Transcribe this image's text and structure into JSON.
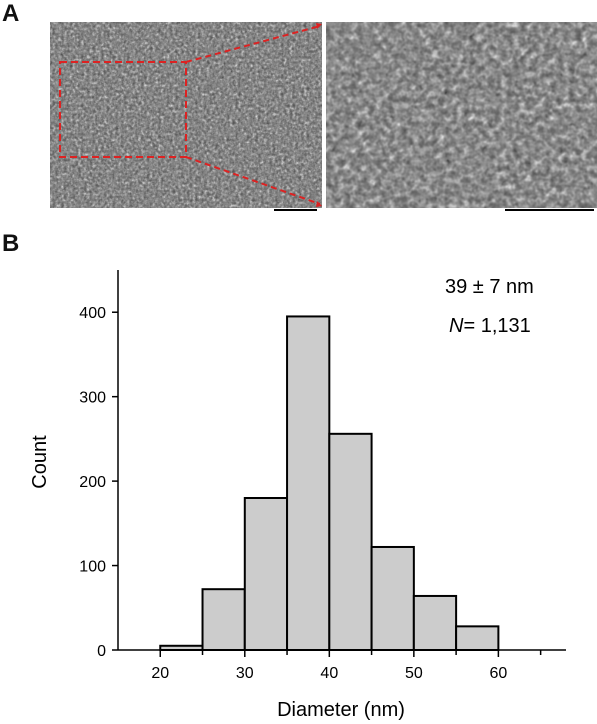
{
  "panels": {
    "a_label": "A",
    "b_label": "B"
  },
  "chart_data": {
    "type": "bar",
    "xlabel": "Diameter (nm)",
    "ylabel": "Count",
    "bin_edges": [
      20,
      25,
      30,
      35,
      40,
      45,
      50,
      55,
      60
    ],
    "values": [
      5,
      72,
      180,
      395,
      256,
      122,
      64,
      28
    ],
    "xlim": [
      15,
      68
    ],
    "ylim": [
      0,
      450
    ],
    "xticks": [
      20,
      30,
      40,
      50,
      60
    ],
    "yticks": [
      0,
      100,
      200,
      300,
      400
    ],
    "annotation_mean": "39 ± 7 nm",
    "annotation_n_prefix": "N",
    "annotation_n_value": "= 1,131",
    "bar_color": "#cccccc",
    "edge_color": "#000000"
  },
  "sem": {
    "zoom_box_color": "#dd2222"
  }
}
